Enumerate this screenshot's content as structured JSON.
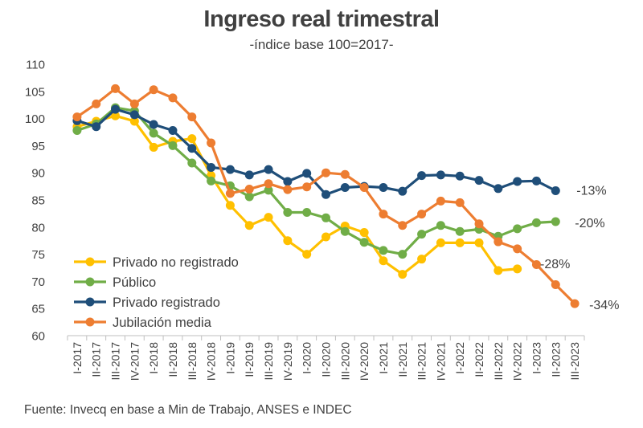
{
  "title": "Ingreso real trimestral",
  "subtitle": "-índice base 100=2017-",
  "source": "Fuente: Invecq en base a Min de Trabajo, ANSES e INDEC",
  "chart_data": {
    "type": "line",
    "title": "Ingreso real trimestral",
    "subtitle": "-índice base 100=2017-",
    "xlabel": "",
    "ylabel": "",
    "ylim": [
      60,
      110
    ],
    "yticks": [
      60,
      65,
      70,
      75,
      80,
      85,
      90,
      95,
      100,
      105,
      110
    ],
    "grid": false,
    "legend_position": "bottom-left",
    "categories": [
      "I-2017",
      "II-2017",
      "III-2017",
      "IV-2017",
      "I-2018",
      "II-2018",
      "III-2018",
      "IV-2018",
      "I-2019",
      "II-2019",
      "III-2019",
      "IV-2019",
      "I-2020",
      "II-2020",
      "III-2020",
      "IV-2020",
      "I-2021",
      "II-2021",
      "III-2021",
      "IV-2021",
      "I-2022",
      "II-2022",
      "III-2022",
      "IV-2022",
      "I-2023",
      "II-2023",
      "III-2023"
    ],
    "series": [
      {
        "name": "Privado no registrado",
        "color": "#FFC000",
        "values": [
          98.5,
          99.5,
          100.5,
          99.5,
          94.7,
          95.8,
          96.3,
          89.5,
          84.0,
          80.3,
          81.8,
          77.5,
          75.0,
          78.2,
          80.2,
          79.0,
          73.8,
          71.3,
          74.1,
          77.1,
          77.1,
          77.1,
          72.0,
          72.3,
          null,
          null,
          null
        ]
      },
      {
        "name": "Público",
        "color": "#70AD47",
        "values": [
          97.8,
          99.0,
          102.0,
          101.4,
          97.3,
          95.0,
          91.8,
          88.5,
          87.6,
          85.6,
          86.8,
          82.7,
          82.7,
          81.7,
          79.2,
          77.2,
          75.7,
          75.0,
          78.7,
          80.3,
          79.2,
          79.6,
          78.3,
          79.7,
          80.8,
          81.0,
          null
        ]
      },
      {
        "name": "Privado registrado",
        "color": "#1F4E79",
        "values": [
          99.6,
          98.5,
          101.7,
          100.7,
          98.9,
          97.8,
          94.5,
          91.0,
          90.6,
          89.6,
          90.6,
          88.4,
          89.9,
          86.0,
          87.3,
          87.5,
          87.3,
          86.6,
          89.5,
          89.6,
          89.4,
          88.6,
          87.1,
          88.4,
          88.5,
          86.7,
          null
        ]
      },
      {
        "name": "Jubilación media",
        "color": "#ED7D31",
        "values": [
          100.3,
          102.7,
          105.5,
          102.7,
          105.3,
          103.8,
          100.3,
          95.5,
          86.2,
          87.0,
          88.0,
          86.9,
          87.4,
          90.0,
          89.7,
          87.3,
          82.4,
          80.3,
          82.4,
          84.8,
          84.5,
          80.6,
          77.3,
          76.0,
          73.1,
          69.4,
          65.9
        ]
      }
    ],
    "annotations": [
      {
        "series": "Privado registrado",
        "text": "-13%"
      },
      {
        "series": "Público",
        "text": "-20%"
      },
      {
        "series": "Privado no registrado",
        "text": "-28%"
      },
      {
        "series": "Jubilación media",
        "text": "-34%"
      }
    ]
  }
}
